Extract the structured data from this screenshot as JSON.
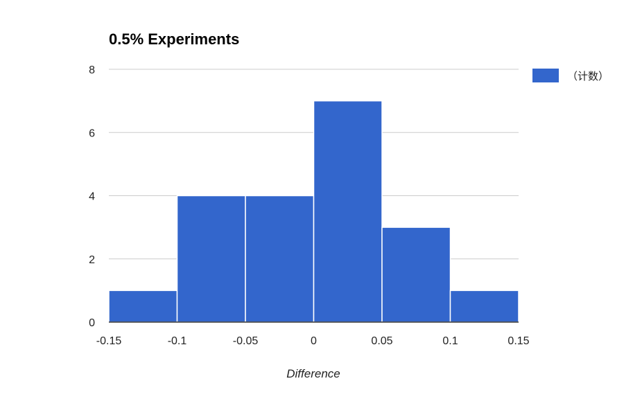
{
  "chart_data": {
    "type": "bar",
    "title": "0.5% Experiments",
    "xlabel": "Difference",
    "ylabel": "",
    "bins": [
      {
        "x0": -0.15,
        "x1": -0.1,
        "count": 1
      },
      {
        "x0": -0.1,
        "x1": -0.05,
        "count": 4
      },
      {
        "x0": -0.05,
        "x1": 0,
        "count": 4
      },
      {
        "x0": 0,
        "x1": 0.05,
        "count": 7
      },
      {
        "x0": 0.05,
        "x1": 0.1,
        "count": 3
      },
      {
        "x0": 0.1,
        "x1": 0.15,
        "count": 1
      }
    ],
    "series": [
      {
        "name": "（计数）",
        "color": "#3366cc"
      }
    ],
    "x_ticks": [
      {
        "value": -0.15,
        "label": "-0.15"
      },
      {
        "value": -0.1,
        "label": "-0.1"
      },
      {
        "value": -0.05,
        "label": "-0.05"
      },
      {
        "value": 0,
        "label": "0"
      },
      {
        "value": 0.05,
        "label": "0.05"
      },
      {
        "value": 0.1,
        "label": "0.1"
      },
      {
        "value": 0.15,
        "label": "0.15"
      }
    ],
    "y_ticks": [
      {
        "value": 0,
        "label": "0"
      },
      {
        "value": 2,
        "label": "2"
      },
      {
        "value": 4,
        "label": "4"
      },
      {
        "value": 6,
        "label": "6"
      },
      {
        "value": 8,
        "label": "8"
      }
    ],
    "xlim": [
      -0.15,
      0.15
    ],
    "ylim": [
      0,
      8
    ],
    "grid": true,
    "legend_position": "top-right"
  }
}
